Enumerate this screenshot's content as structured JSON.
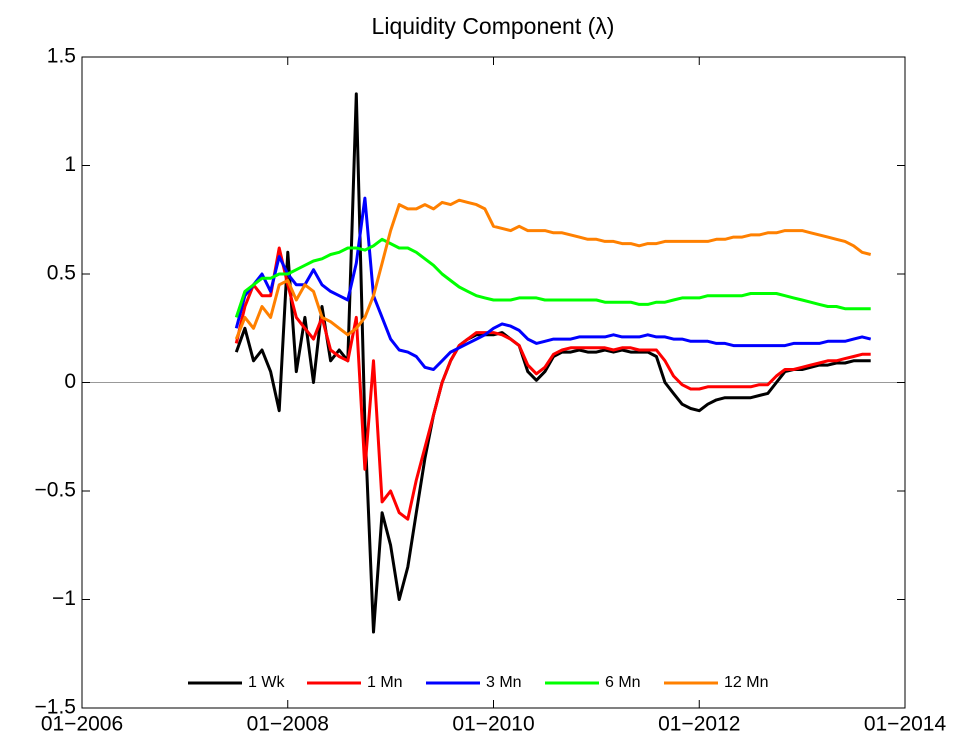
{
  "chart_data": {
    "type": "line",
    "title": "Liquidity Component (λ)",
    "x": [
      "2007-07",
      "2007-08",
      "2007-09",
      "2007-10",
      "2007-11",
      "2007-12",
      "2008-01",
      "2008-02",
      "2008-03",
      "2008-04",
      "2008-05",
      "2008-06",
      "2008-07",
      "2008-08",
      "2008-09",
      "2008-10",
      "2008-11",
      "2008-12",
      "2009-01",
      "2009-02",
      "2009-03",
      "2009-04",
      "2009-05",
      "2009-06",
      "2009-07",
      "2009-08",
      "2009-09",
      "2009-10",
      "2009-11",
      "2009-12",
      "2010-01",
      "2010-02",
      "2010-03",
      "2010-04",
      "2010-05",
      "2010-06",
      "2010-07",
      "2010-08",
      "2010-09",
      "2010-10",
      "2010-11",
      "2010-12",
      "2011-01",
      "2011-02",
      "2011-03",
      "2011-04",
      "2011-05",
      "2011-06",
      "2011-07",
      "2011-08",
      "2011-09",
      "2011-10",
      "2011-11",
      "2011-12",
      "2012-01",
      "2012-02",
      "2012-03",
      "2012-04",
      "2012-05",
      "2012-06",
      "2012-07",
      "2012-08",
      "2012-09",
      "2012-10",
      "2012-11",
      "2012-12",
      "2013-01",
      "2013-02",
      "2013-03",
      "2013-04",
      "2013-05",
      "2013-06",
      "2013-07",
      "2013-08",
      "2013-09"
    ],
    "series": [
      {
        "name": "1 Wk",
        "color": "#000000",
        "values": [
          0.14,
          0.25,
          0.1,
          0.15,
          0.05,
          -0.13,
          0.6,
          0.05,
          0.3,
          0.0,
          0.35,
          0.1,
          0.15,
          0.1,
          1.33,
          -0.2,
          -1.15,
          -0.6,
          -0.75,
          -1.0,
          -0.85,
          -0.6,
          -0.35,
          -0.15,
          0.0,
          0.1,
          0.17,
          0.2,
          0.22,
          0.22,
          0.22,
          0.23,
          0.2,
          0.17,
          0.05,
          0.01,
          0.05,
          0.12,
          0.14,
          0.14,
          0.15,
          0.14,
          0.14,
          0.15,
          0.14,
          0.15,
          0.14,
          0.14,
          0.14,
          0.12,
          0.0,
          -0.05,
          -0.1,
          -0.12,
          -0.13,
          -0.1,
          -0.08,
          -0.07,
          -0.07,
          -0.07,
          -0.07,
          -0.06,
          -0.05,
          0.0,
          0.05,
          0.06,
          0.06,
          0.07,
          0.08,
          0.08,
          0.09,
          0.09,
          0.1,
          0.1,
          0.1
        ]
      },
      {
        "name": "1 Mn",
        "color": "#ff0000",
        "values": [
          0.18,
          0.35,
          0.45,
          0.4,
          0.4,
          0.62,
          0.45,
          0.3,
          0.25,
          0.2,
          0.3,
          0.15,
          0.12,
          0.1,
          0.3,
          -0.4,
          0.1,
          -0.55,
          -0.5,
          -0.6,
          -0.63,
          -0.45,
          -0.3,
          -0.15,
          0.0,
          0.1,
          0.17,
          0.2,
          0.23,
          0.23,
          0.23,
          0.22,
          0.2,
          0.17,
          0.08,
          0.04,
          0.07,
          0.13,
          0.15,
          0.16,
          0.16,
          0.16,
          0.16,
          0.16,
          0.15,
          0.16,
          0.16,
          0.15,
          0.15,
          0.15,
          0.1,
          0.03,
          -0.01,
          -0.03,
          -0.03,
          -0.02,
          -0.02,
          -0.02,
          -0.02,
          -0.02,
          -0.02,
          -0.01,
          -0.01,
          0.03,
          0.06,
          0.06,
          0.07,
          0.08,
          0.09,
          0.1,
          0.1,
          0.11,
          0.12,
          0.13,
          0.13
        ]
      },
      {
        "name": "3 Mn",
        "color": "#0000ff",
        "values": [
          0.25,
          0.4,
          0.45,
          0.5,
          0.42,
          0.58,
          0.5,
          0.45,
          0.45,
          0.52,
          0.45,
          0.42,
          0.4,
          0.38,
          0.55,
          0.85,
          0.4,
          0.3,
          0.2,
          0.15,
          0.14,
          0.12,
          0.07,
          0.06,
          0.1,
          0.14,
          0.16,
          0.18,
          0.2,
          0.22,
          0.25,
          0.27,
          0.26,
          0.24,
          0.2,
          0.18,
          0.19,
          0.2,
          0.2,
          0.2,
          0.21,
          0.21,
          0.21,
          0.21,
          0.22,
          0.21,
          0.21,
          0.21,
          0.22,
          0.21,
          0.21,
          0.2,
          0.2,
          0.19,
          0.19,
          0.19,
          0.18,
          0.18,
          0.17,
          0.17,
          0.17,
          0.17,
          0.17,
          0.17,
          0.17,
          0.18,
          0.18,
          0.18,
          0.18,
          0.19,
          0.19,
          0.19,
          0.2,
          0.21,
          0.2
        ]
      },
      {
        "name": "6 Mn",
        "color": "#00ff00",
        "values": [
          0.3,
          0.42,
          0.45,
          0.48,
          0.48,
          0.5,
          0.5,
          0.52,
          0.54,
          0.56,
          0.57,
          0.59,
          0.6,
          0.62,
          0.62,
          0.61,
          0.63,
          0.66,
          0.64,
          0.62,
          0.62,
          0.6,
          0.57,
          0.54,
          0.5,
          0.47,
          0.44,
          0.42,
          0.4,
          0.39,
          0.38,
          0.38,
          0.38,
          0.39,
          0.39,
          0.39,
          0.38,
          0.38,
          0.38,
          0.38,
          0.38,
          0.38,
          0.38,
          0.37,
          0.37,
          0.37,
          0.37,
          0.36,
          0.36,
          0.37,
          0.37,
          0.38,
          0.39,
          0.39,
          0.39,
          0.4,
          0.4,
          0.4,
          0.4,
          0.4,
          0.41,
          0.41,
          0.41,
          0.41,
          0.4,
          0.39,
          0.38,
          0.37,
          0.36,
          0.35,
          0.35,
          0.34,
          0.34,
          0.34,
          0.34
        ]
      },
      {
        "name": "12 Mn",
        "color": "#ff8000",
        "values": [
          0.2,
          0.3,
          0.25,
          0.35,
          0.3,
          0.45,
          0.47,
          0.38,
          0.45,
          0.42,
          0.3,
          0.28,
          0.25,
          0.22,
          0.25,
          0.3,
          0.4,
          0.55,
          0.7,
          0.82,
          0.8,
          0.8,
          0.82,
          0.8,
          0.83,
          0.82,
          0.84,
          0.83,
          0.82,
          0.8,
          0.72,
          0.71,
          0.7,
          0.72,
          0.7,
          0.7,
          0.7,
          0.69,
          0.69,
          0.68,
          0.67,
          0.66,
          0.66,
          0.65,
          0.65,
          0.64,
          0.64,
          0.63,
          0.64,
          0.64,
          0.65,
          0.65,
          0.65,
          0.65,
          0.65,
          0.65,
          0.66,
          0.66,
          0.67,
          0.67,
          0.68,
          0.68,
          0.69,
          0.69,
          0.7,
          0.7,
          0.7,
          0.69,
          0.68,
          0.67,
          0.66,
          0.65,
          0.63,
          0.6,
          0.59
        ]
      }
    ],
    "xlim": [
      "2006-01",
      "2014-01"
    ],
    "xticks": [
      {
        "value": "2006-01",
        "label": "01−2006"
      },
      {
        "value": "2008-01",
        "label": "01−2008"
      },
      {
        "value": "2010-01",
        "label": "01−2010"
      },
      {
        "value": "2012-01",
        "label": "01−2012"
      },
      {
        "value": "2014-01",
        "label": "01−2014"
      }
    ],
    "ylim": [
      -1.5,
      1.5
    ],
    "yticks": [
      {
        "value": -1.5,
        "label": "−1.5"
      },
      {
        "value": -1,
        "label": "−1"
      },
      {
        "value": -0.5,
        "label": "−0.5"
      },
      0,
      0.5,
      1,
      1.5
    ],
    "zero_line": true,
    "legend": "bottom"
  }
}
